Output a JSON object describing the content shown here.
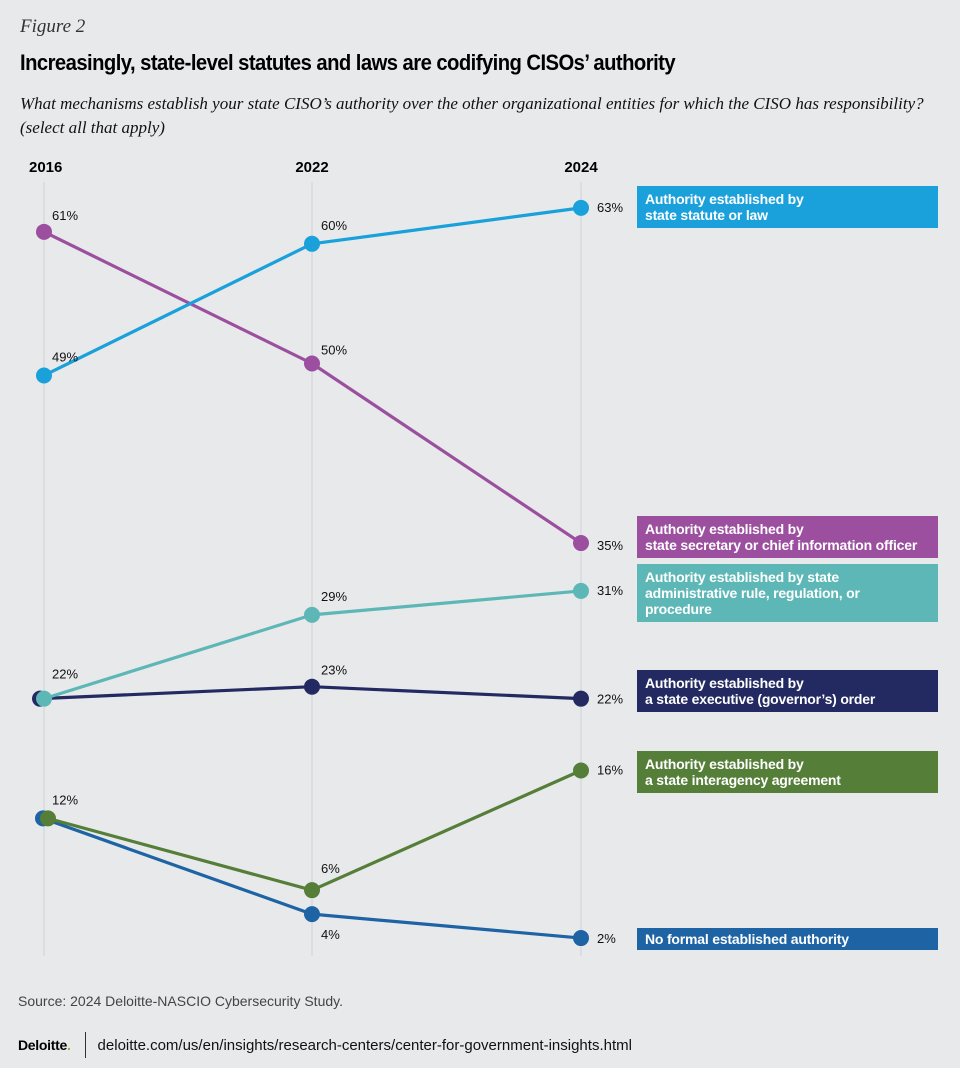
{
  "figure_label": "Figure 2",
  "title": "Increasingly, state-level statutes and laws are codifying CISOs’ authority",
  "subtitle": "What mechanisms establish your state CISO’s authority over the other organizational entities for which the CISO has responsibility? (select all that apply)",
  "source": "Source: 2024 Deloitte-NASCIO Cybersecurity Study.",
  "footer": {
    "logo": "Deloitte",
    "logo_dot": ".",
    "url": "deloitte.com/us/en/insights/research-centers/center-for-government-insights.html"
  },
  "chart_data": {
    "type": "line",
    "title": "Increasingly, state-level statutes and laws are codifying CISOs’ authority",
    "x": [
      "2016",
      "2022",
      "2024"
    ],
    "xlabel": "",
    "ylabel": "",
    "ylim": [
      0,
      65
    ],
    "grid": "vertical lines at each year",
    "legend": "right (label boxes at line ends)",
    "series": [
      {
        "name": "Authority established by state statute or law",
        "lines": [
          "Authority established by",
          "state statute or law"
        ],
        "values": [
          49,
          60,
          63
        ],
        "labels": [
          "49%",
          "60%",
          "63%"
        ],
        "color": "#1aa0da"
      },
      {
        "name": "Authority established by state secretary or chief information officer",
        "lines": [
          "Authority established by",
          "state secretary or chief information officer"
        ],
        "values": [
          61,
          50,
          35
        ],
        "labels": [
          "61%",
          "50%",
          "35%"
        ],
        "color": "#9b4f9e"
      },
      {
        "name": "Authority established by state administrative rule, regulation, or procedure",
        "lines": [
          "Authority established by state",
          "administrative rule, regulation, or procedure"
        ],
        "values": [
          22,
          29,
          31
        ],
        "labels": [
          "22%",
          "29%",
          "31%"
        ],
        "color": "#5db7b6"
      },
      {
        "name": "Authority established by a state executive (governor’s) order",
        "lines": [
          "Authority established by",
          "a state executive (governor’s) order"
        ],
        "values": [
          22,
          23,
          22
        ],
        "labels": [
          "",
          "23%",
          "22%"
        ],
        "color": "#232a62"
      },
      {
        "name": "Authority established by a state interagency agreement",
        "lines": [
          "Authority established by",
          "a state interagency agreement"
        ],
        "values": [
          12,
          6,
          16
        ],
        "labels": [
          "12%",
          "6%",
          "16%"
        ],
        "color": "#557e39"
      },
      {
        "name": "No formal established authority",
        "lines": [
          "No formal established authority"
        ],
        "values": [
          12,
          4,
          2
        ],
        "labels": [
          "",
          "4%",
          "2%"
        ],
        "color": "#1e63a4"
      }
    ]
  }
}
